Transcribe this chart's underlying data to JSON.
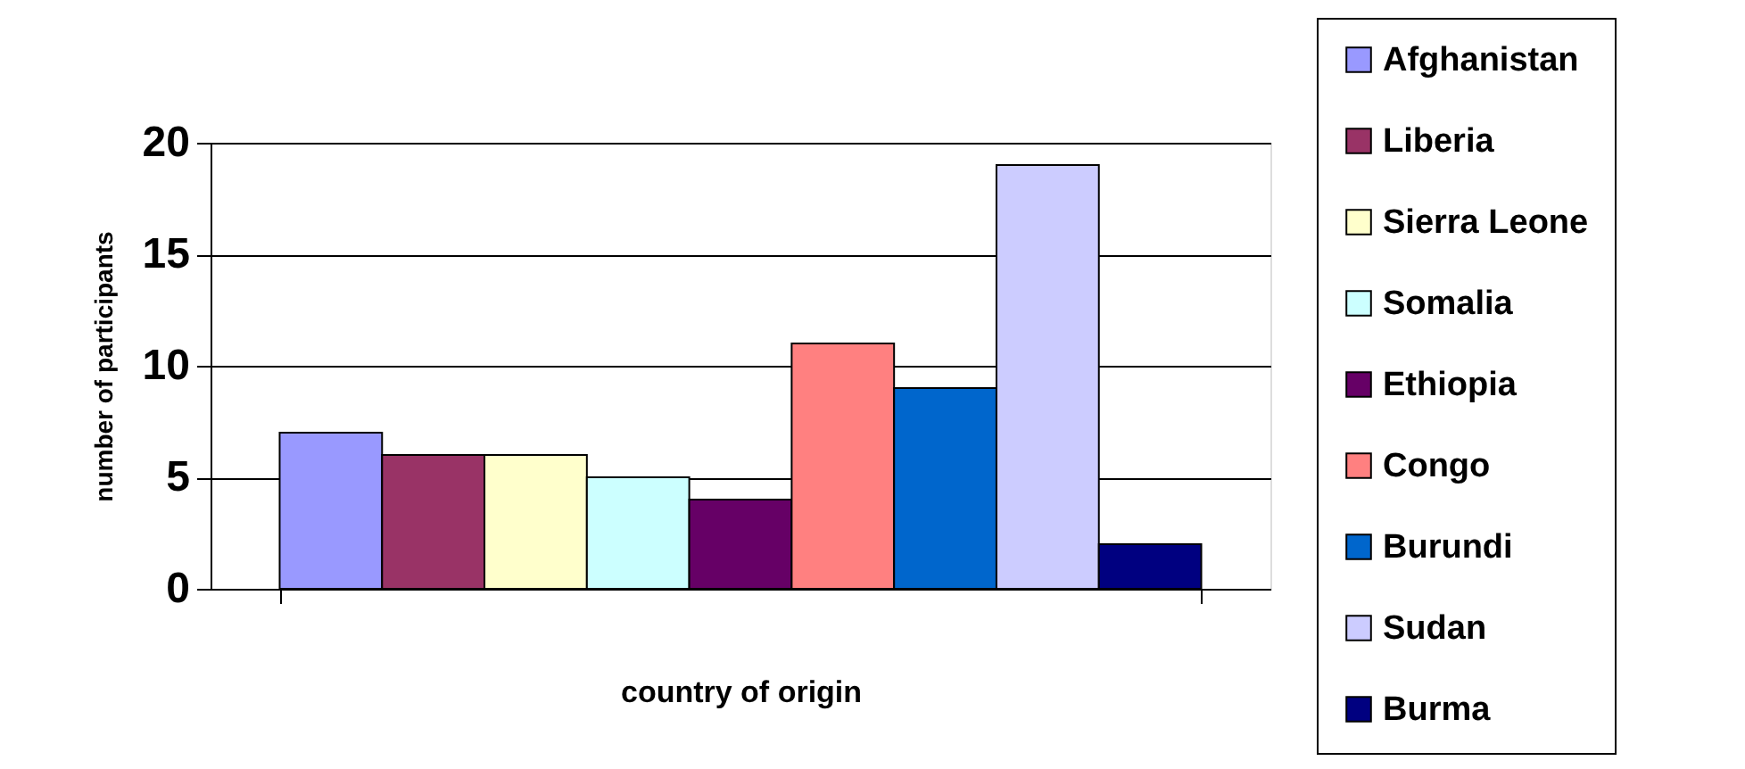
{
  "chart_data": {
    "type": "bar",
    "categories": [
      null
    ],
    "xlabel": "country of origin",
    "ylabel": "number of participants",
    "series": [
      {
        "name": "Afghanistan",
        "color": "#9999ff",
        "values": [
          7
        ]
      },
      {
        "name": "Liberia",
        "color": "#993366",
        "values": [
          6
        ]
      },
      {
        "name": "Sierra Leone",
        "color": "#ffffcc",
        "values": [
          6
        ]
      },
      {
        "name": "Somalia",
        "color": "#ccffff",
        "values": [
          5
        ]
      },
      {
        "name": "Ethiopia",
        "color": "#660066",
        "values": [
          4
        ]
      },
      {
        "name": "Congo",
        "color": "#ff8080",
        "values": [
          11
        ]
      },
      {
        "name": "Burundi",
        "color": "#0066cc",
        "values": [
          9
        ]
      },
      {
        "name": "Sudan",
        "color": "#ccccff",
        "values": [
          19
        ]
      },
      {
        "name": "Burma",
        "color": "#000080",
        "values": [
          2
        ]
      }
    ],
    "ylim": [
      0,
      20
    ],
    "yticks": [
      0,
      5,
      10,
      15,
      20
    ],
    "grid": "y",
    "legend": "right"
  }
}
